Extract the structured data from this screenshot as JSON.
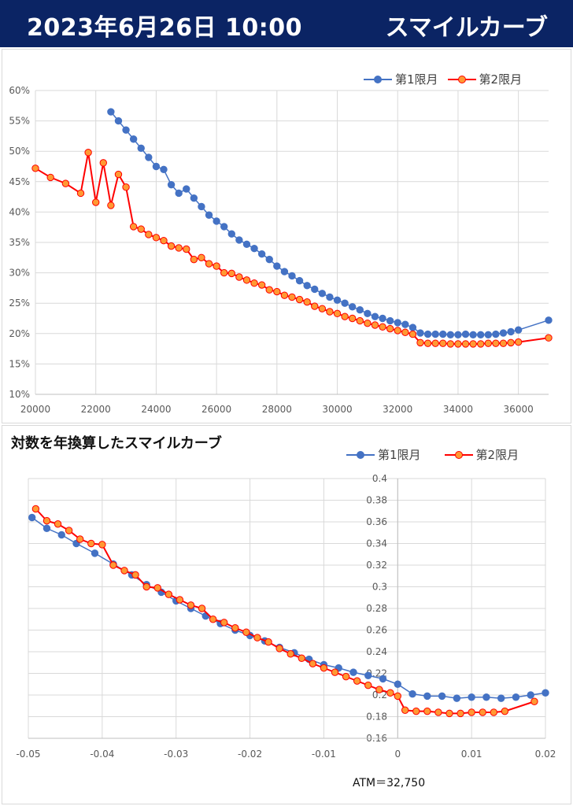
{
  "header": {
    "date": "2023年6月26日 10:00",
    "title": "スマイルカーブ"
  },
  "subtitle": "対数を年換算したスマイルカーブ",
  "atm_note": "ATM＝32,750",
  "colors": {
    "header_bg": "#0b2464",
    "series1": "#4472c4",
    "series2_line": "#ff0000",
    "series2_fill": "#ff9933"
  },
  "chart_data": [
    {
      "type": "line",
      "title": "スマイルカーブ",
      "x_ticks": [
        "20000",
        "22000",
        "24000",
        "26000",
        "28000",
        "30000",
        "32000",
        "34000",
        "36000"
      ],
      "y_ticks": [
        "10%",
        "15%",
        "20%",
        "25%",
        "30%",
        "35%",
        "40%",
        "45%",
        "50%",
        "55%",
        "60%"
      ],
      "xlim": [
        20000,
        37000
      ],
      "ylim": [
        0.1,
        0.6
      ],
      "grid": true,
      "legend_position": "top-right",
      "series": [
        {
          "name": "第1限月",
          "x": [
            22500,
            22750,
            23000,
            23250,
            23500,
            23750,
            24000,
            24250,
            24500,
            24750,
            25000,
            25250,
            25500,
            25750,
            26000,
            26250,
            26500,
            26750,
            27000,
            27250,
            27500,
            27750,
            28000,
            28250,
            28500,
            28750,
            29000,
            29250,
            29500,
            29750,
            30000,
            30250,
            30500,
            30750,
            31000,
            31250,
            31500,
            31750,
            32000,
            32250,
            32500,
            32750,
            33000,
            33250,
            33500,
            33750,
            34000,
            34250,
            34500,
            34750,
            35000,
            35250,
            35500,
            35750,
            36000,
            37000
          ],
          "y": [
            0.565,
            0.55,
            0.535,
            0.52,
            0.505,
            0.49,
            0.475,
            0.47,
            0.445,
            0.431,
            0.438,
            0.423,
            0.409,
            0.395,
            0.385,
            0.376,
            0.364,
            0.354,
            0.347,
            0.34,
            0.331,
            0.322,
            0.311,
            0.302,
            0.295,
            0.287,
            0.279,
            0.273,
            0.266,
            0.26,
            0.255,
            0.25,
            0.244,
            0.239,
            0.233,
            0.228,
            0.225,
            0.221,
            0.218,
            0.215,
            0.21,
            0.201,
            0.199,
            0.199,
            0.199,
            0.198,
            0.198,
            0.199,
            0.198,
            0.198,
            0.198,
            0.199,
            0.201,
            0.203,
            0.206,
            0.222
          ]
        },
        {
          "name": "第2限月",
          "x": [
            20000,
            20500,
            21000,
            21500,
            21750,
            22000,
            22250,
            22500,
            22750,
            23000,
            23250,
            23500,
            23750,
            24000,
            24250,
            24500,
            24750,
            25000,
            25250,
            25500,
            25750,
            26000,
            26250,
            26500,
            26750,
            27000,
            27250,
            27500,
            27750,
            28000,
            28250,
            28500,
            28750,
            29000,
            29250,
            29500,
            29750,
            30000,
            30250,
            30500,
            30750,
            31000,
            31250,
            31500,
            31750,
            32000,
            32250,
            32500,
            32750,
            33000,
            33250,
            33500,
            33750,
            34000,
            34250,
            34500,
            34750,
            35000,
            35250,
            35500,
            35750,
            36000,
            37000
          ],
          "y": [
            0.472,
            0.457,
            0.447,
            0.431,
            0.498,
            0.416,
            0.481,
            0.411,
            0.462,
            0.441,
            0.376,
            0.372,
            0.363,
            0.358,
            0.353,
            0.344,
            0.341,
            0.339,
            0.322,
            0.325,
            0.315,
            0.311,
            0.3,
            0.299,
            0.293,
            0.288,
            0.283,
            0.28,
            0.272,
            0.269,
            0.263,
            0.26,
            0.256,
            0.252,
            0.245,
            0.241,
            0.236,
            0.233,
            0.228,
            0.225,
            0.221,
            0.217,
            0.214,
            0.211,
            0.208,
            0.205,
            0.202,
            0.199,
            0.185,
            0.184,
            0.184,
            0.184,
            0.183,
            0.183,
            0.183,
            0.183,
            0.183,
            0.184,
            0.184,
            0.184,
            0.185,
            0.186,
            0.193
          ]
        }
      ]
    },
    {
      "type": "line",
      "title": "対数を年換算したスマイルカーブ",
      "x_ticks": [
        "-0.05",
        "-0.04",
        "-0.03",
        "-0.02",
        "-0.01",
        "0",
        "0.01",
        "0.02"
      ],
      "y_ticks": [
        "0.16",
        "0.18",
        "0.2",
        "0.22",
        "0.24",
        "0.26",
        "0.28",
        "0.3",
        "0.32",
        "0.34",
        "0.36",
        "0.38",
        "0.4"
      ],
      "xlim": [
        -0.05,
        0.02
      ],
      "ylim": [
        0.16,
        0.4
      ],
      "grid": true,
      "legend_position": "top-right",
      "series": [
        {
          "name": "第1限月",
          "x": [
            -0.0495,
            -0.0475,
            -0.0455,
            -0.0435,
            -0.041,
            -0.0385,
            -0.036,
            -0.034,
            -0.032,
            -0.03,
            -0.028,
            -0.026,
            -0.024,
            -0.022,
            -0.02,
            -0.018,
            -0.016,
            -0.014,
            -0.012,
            -0.01,
            -0.008,
            -0.006,
            -0.004,
            -0.002,
            0.0,
            0.002,
            0.004,
            0.006,
            0.008,
            0.01,
            0.012,
            0.014,
            0.016,
            0.018,
            0.02
          ],
          "y": [
            0.364,
            0.354,
            0.348,
            0.34,
            0.331,
            0.321,
            0.311,
            0.302,
            0.295,
            0.287,
            0.28,
            0.273,
            0.266,
            0.26,
            0.255,
            0.25,
            0.244,
            0.239,
            0.233,
            0.228,
            0.225,
            0.221,
            0.218,
            0.215,
            0.21,
            0.201,
            0.199,
            0.199,
            0.197,
            0.198,
            0.198,
            0.197,
            0.198,
            0.2,
            0.202
          ]
        },
        {
          "name": "第2限月",
          "x": [
            -0.049,
            -0.0475,
            -0.046,
            -0.0445,
            -0.043,
            -0.0415,
            -0.04,
            -0.0385,
            -0.037,
            -0.0355,
            -0.034,
            -0.0325,
            -0.031,
            -0.0295,
            -0.028,
            -0.0265,
            -0.025,
            -0.0235,
            -0.022,
            -0.0205,
            -0.019,
            -0.0175,
            -0.016,
            -0.0145,
            -0.013,
            -0.0115,
            -0.01,
            -0.0085,
            -0.007,
            -0.0055,
            -0.004,
            -0.0025,
            -0.001,
            0.0,
            0.001,
            0.0025,
            0.004,
            0.0055,
            0.007,
            0.0085,
            0.01,
            0.0115,
            0.013,
            0.0145,
            0.0185
          ],
          "y": [
            0.372,
            0.361,
            0.358,
            0.352,
            0.344,
            0.34,
            0.339,
            0.32,
            0.315,
            0.311,
            0.3,
            0.299,
            0.293,
            0.288,
            0.283,
            0.28,
            0.27,
            0.267,
            0.262,
            0.258,
            0.253,
            0.249,
            0.243,
            0.238,
            0.234,
            0.229,
            0.225,
            0.221,
            0.217,
            0.213,
            0.209,
            0.205,
            0.202,
            0.199,
            0.186,
            0.185,
            0.185,
            0.184,
            0.183,
            0.183,
            0.184,
            0.184,
            0.184,
            0.185,
            0.194
          ]
        }
      ]
    }
  ]
}
